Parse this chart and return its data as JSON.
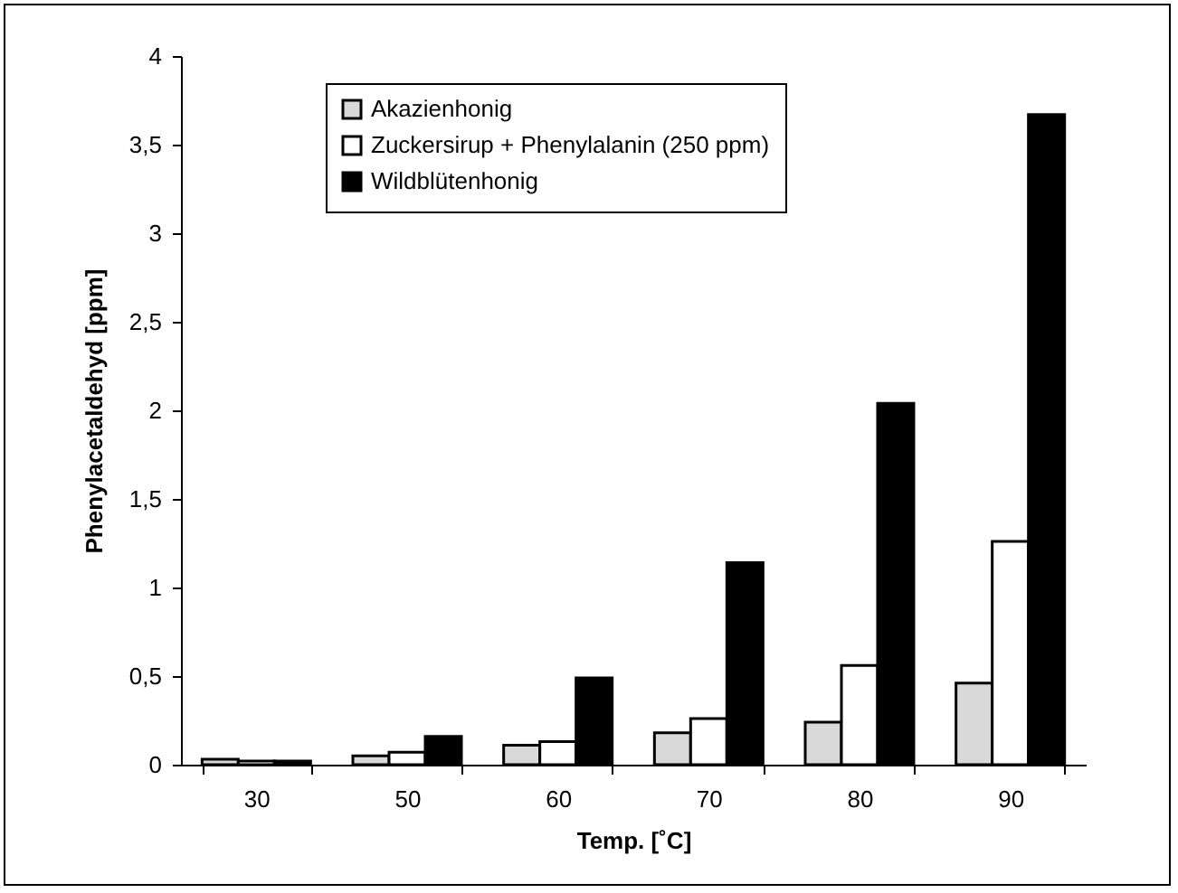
{
  "chart_data": {
    "type": "bar",
    "xlabel": "Temp. [˚C]",
    "ylabel": "Phenylacetaldehyd [ppm]",
    "categories": [
      "30",
      "50",
      "60",
      "70",
      "80",
      "90"
    ],
    "series": [
      {
        "name": "Akazienhonig",
        "color": "#d9d9d9",
        "values": [
          0.03,
          0.05,
          0.11,
          0.18,
          0.24,
          0.46
        ]
      },
      {
        "name": "Zuckersirup + Phenylalanin (250 ppm)",
        "color": "#ffffff",
        "values": [
          0.02,
          0.07,
          0.13,
          0.26,
          0.56,
          1.26
        ]
      },
      {
        "name": "Wildblütenhonig",
        "color": "#000000",
        "values": [
          0.02,
          0.16,
          0.49,
          1.14,
          2.04,
          3.67
        ]
      }
    ],
    "ylim": [
      0,
      4
    ],
    "yticks": [
      0,
      {
        "value": 0.5,
        "label": "0,5"
      },
      1,
      {
        "value": 1.5,
        "label": "1,5"
      },
      2,
      {
        "value": 2.5,
        "label": "2,5"
      },
      3,
      {
        "value": 3.5,
        "label": "3,5"
      },
      4
    ],
    "grid": false,
    "legend": "top left"
  }
}
